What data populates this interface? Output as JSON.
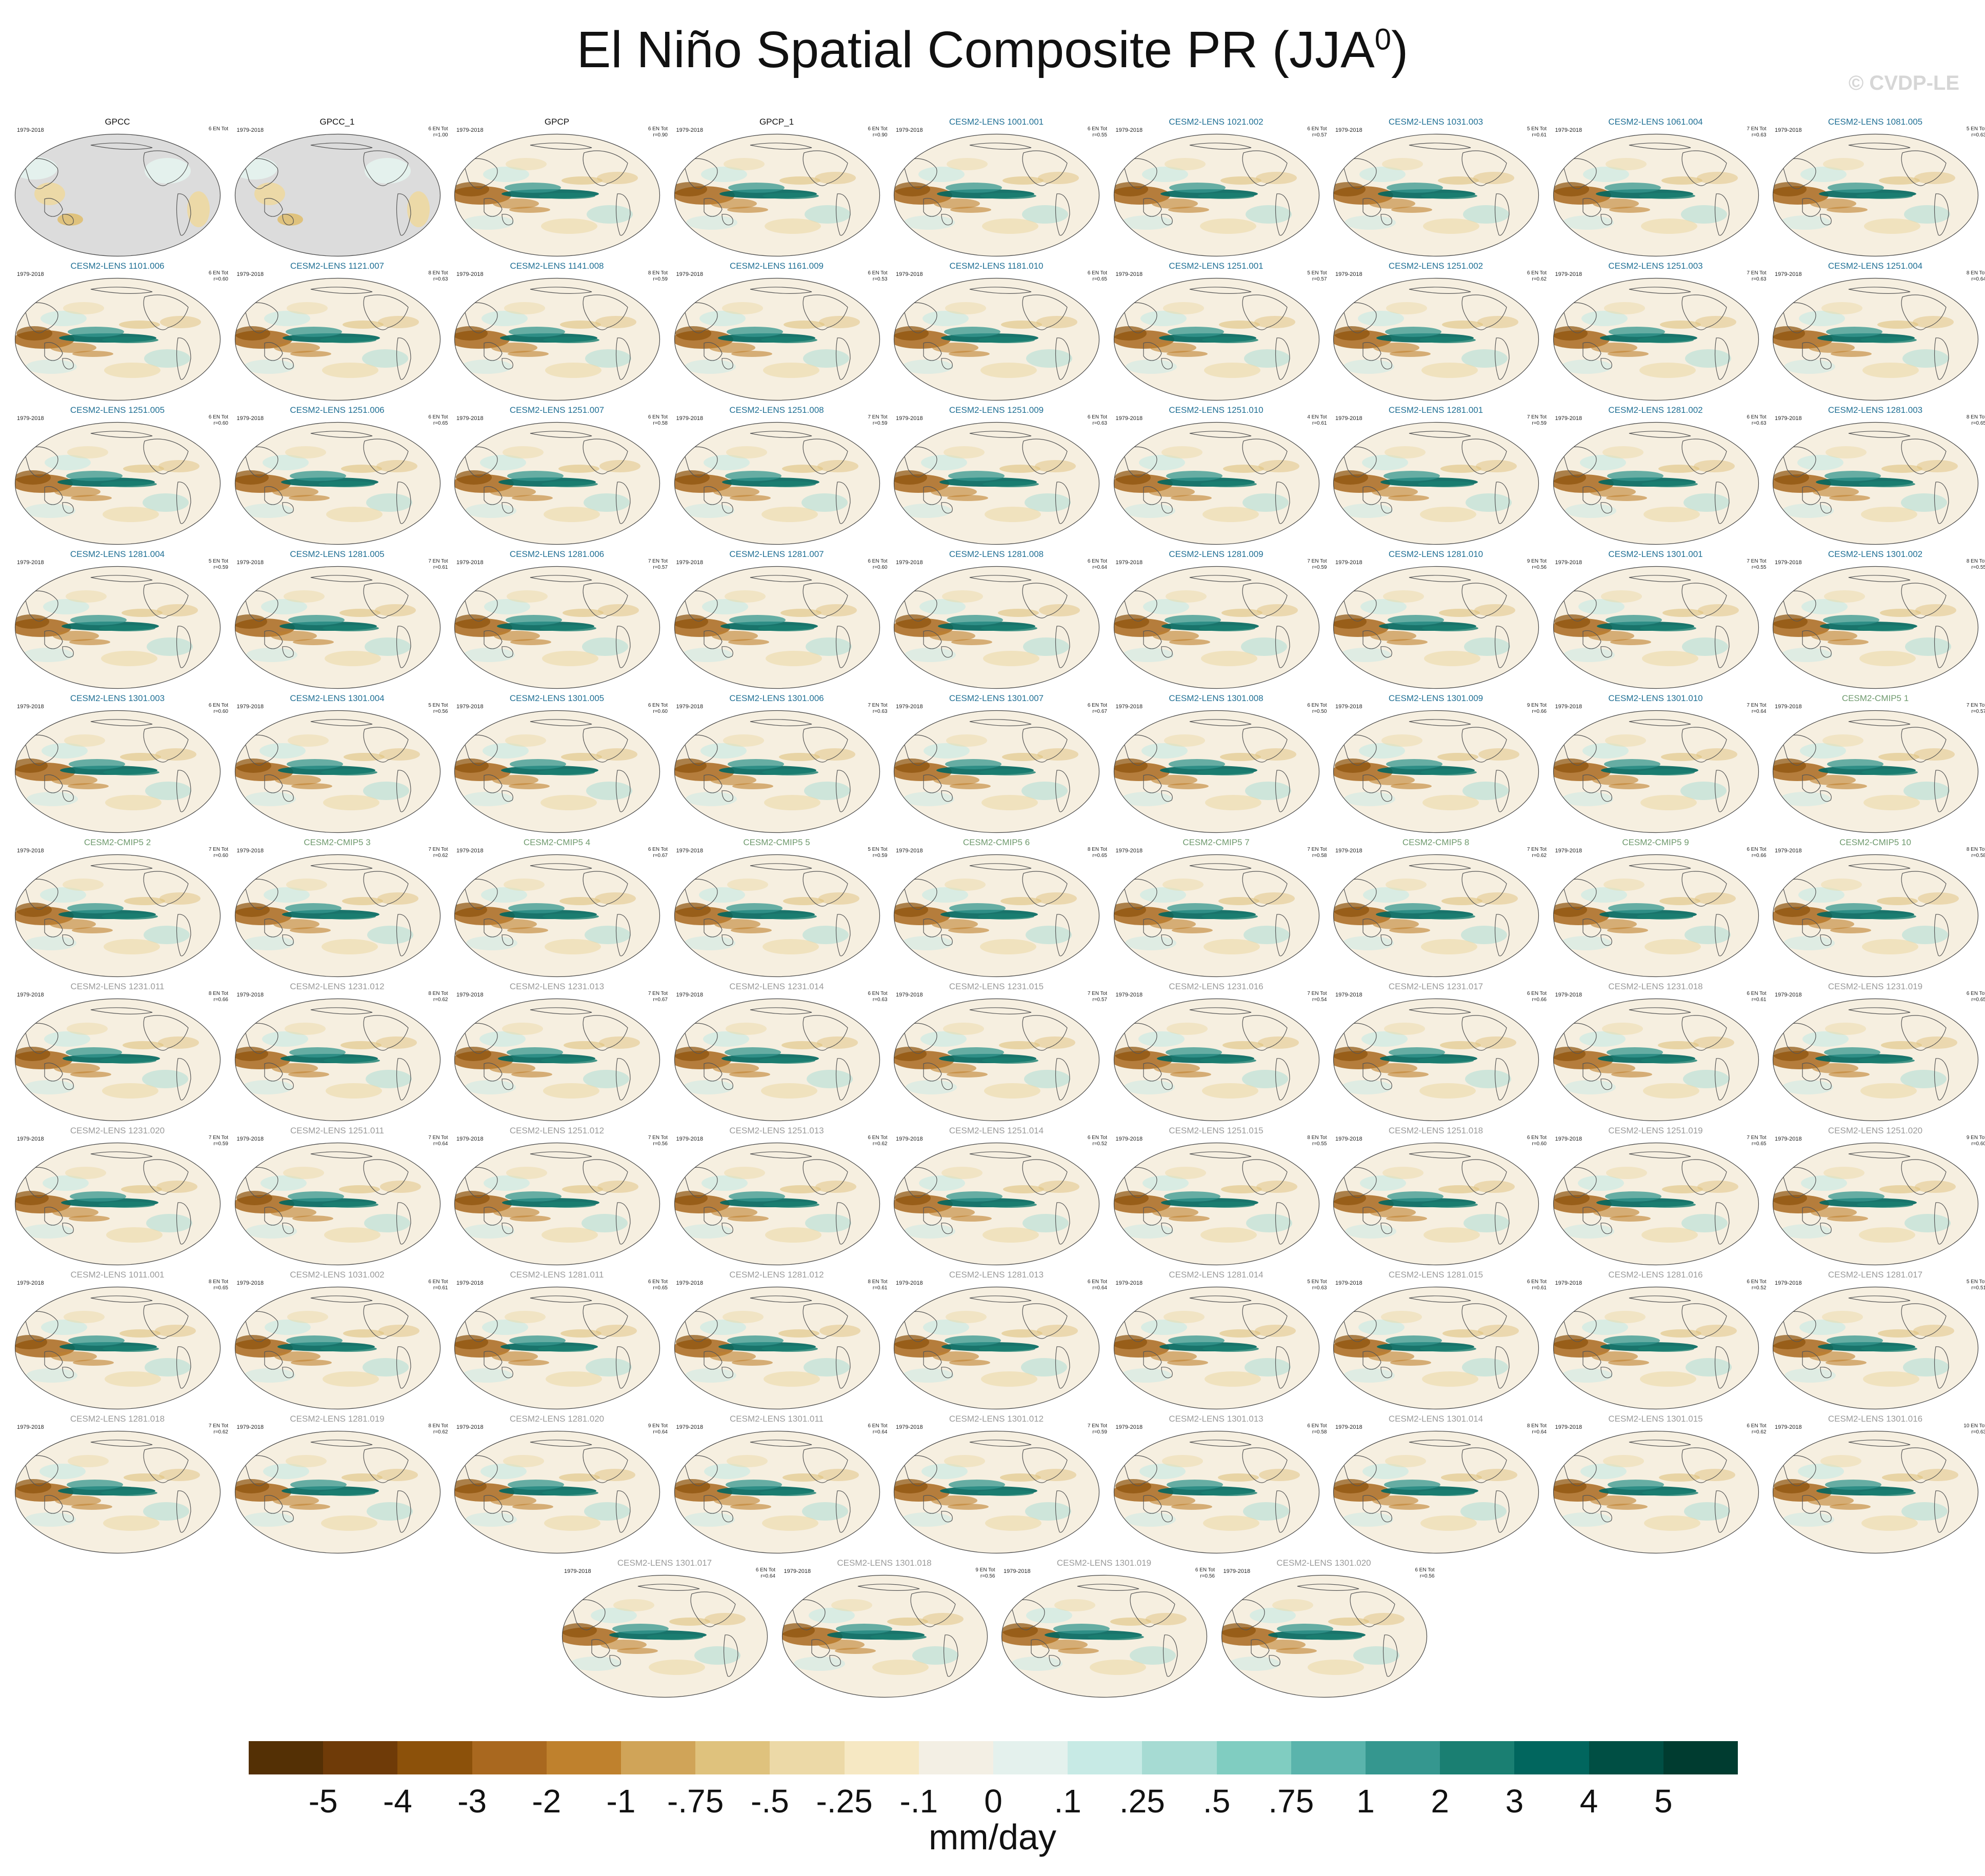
{
  "title": {
    "text": "El Niño Spatial Composite PR (JJA",
    "superscript": "0",
    "close": ")"
  },
  "watermark": "© CVDP-LE",
  "units": "mm/day",
  "colorbar": {
    "colors": [
      "#543005",
      "#6f3b08",
      "#8c510a",
      "#a9681f",
      "#bf812d",
      "#d0a458",
      "#dfc27d",
      "#ecd9a7",
      "#f6e8c3",
      "#f3efe4",
      "#e4f1ed",
      "#c7eae5",
      "#a6dbd3",
      "#80cdc1",
      "#5ab4ac",
      "#35978f",
      "#1a7f72",
      "#01665e",
      "#004f44",
      "#003c30"
    ],
    "ticks": [
      "-5",
      "-4",
      "-3",
      "-2",
      "-1",
      "-.75",
      "-.5",
      "-.25",
      "-.1",
      "0",
      ".1",
      ".25",
      ".5",
      ".75",
      "1",
      "2",
      "3",
      "4",
      "5"
    ]
  },
  "panels": [
    {
      "name": "GPCC",
      "years": "1979-2018",
      "count": "6 EN Tot",
      "r": "",
      "color": "#111111",
      "obs": true
    },
    {
      "name": "GPCC_1",
      "years": "1979-2018",
      "count": "6 EN Tot",
      "r": "r=1.00",
      "color": "#111111",
      "obs": true
    },
    {
      "name": "GPCP",
      "years": "1979-2018",
      "count": "6 EN Tot",
      "r": "r=0.90",
      "color": "#111111"
    },
    {
      "name": "GPCP_1",
      "years": "1979-2018",
      "count": "6 EN Tot",
      "r": "r=0.90",
      "color": "#111111"
    },
    {
      "name": "CESM2-LENS 1001.001",
      "years": "1979-2018",
      "count": "6 EN Tot",
      "r": "r=0.55",
      "color": "#1f6f94"
    },
    {
      "name": "CESM2-LENS 1021.002",
      "years": "1979-2018",
      "count": "6 EN Tot",
      "r": "r=0.57",
      "color": "#1f6f94"
    },
    {
      "name": "CESM2-LENS 1031.003",
      "years": "1979-2018",
      "count": "5 EN Tot",
      "r": "r=0.61",
      "color": "#1f6f94"
    },
    {
      "name": "CESM2-LENS 1061.004",
      "years": "1979-2018",
      "count": "7 EN Tot",
      "r": "r=0.63",
      "color": "#1f6f94"
    },
    {
      "name": "CESM2-LENS 1081.005",
      "years": "1979-2018",
      "count": "5 EN Tot",
      "r": "r=0.63",
      "color": "#1f6f94"
    },
    {
      "name": "CESM2-LENS 1101.006",
      "years": "1979-2018",
      "count": "6 EN Tot",
      "r": "r=0.60",
      "color": "#1f6f94"
    },
    {
      "name": "CESM2-LENS 1121.007",
      "years": "1979-2018",
      "count": "8 EN Tot",
      "r": "r=0.63",
      "color": "#1f6f94"
    },
    {
      "name": "CESM2-LENS 1141.008",
      "years": "1979-2018",
      "count": "8 EN Tot",
      "r": "r=0.59",
      "color": "#1f6f94"
    },
    {
      "name": "CESM2-LENS 1161.009",
      "years": "1979-2018",
      "count": "6 EN Tot",
      "r": "r=0.53",
      "color": "#1f6f94"
    },
    {
      "name": "CESM2-LENS 1181.010",
      "years": "1979-2018",
      "count": "6 EN Tot",
      "r": "r=0.65",
      "color": "#1f6f94"
    },
    {
      "name": "CESM2-LENS 1251.001",
      "years": "1979-2018",
      "count": "5 EN Tot",
      "r": "r=0.57",
      "color": "#1f6f94"
    },
    {
      "name": "CESM2-LENS 1251.002",
      "years": "1979-2018",
      "count": "6 EN Tot",
      "r": "r=0.62",
      "color": "#1f6f94"
    },
    {
      "name": "CESM2-LENS 1251.003",
      "years": "1979-2018",
      "count": "7 EN Tot",
      "r": "r=0.63",
      "color": "#1f6f94"
    },
    {
      "name": "CESM2-LENS 1251.004",
      "years": "1979-2018",
      "count": "8 EN Tot",
      "r": "r=0.64",
      "color": "#1f6f94"
    },
    {
      "name": "CESM2-LENS 1251.005",
      "years": "1979-2018",
      "count": "6 EN Tot",
      "r": "r=0.60",
      "color": "#1f6f94"
    },
    {
      "name": "CESM2-LENS 1251.006",
      "years": "1979-2018",
      "count": "6 EN Tot",
      "r": "r=0.65",
      "color": "#1f6f94"
    },
    {
      "name": "CESM2-LENS 1251.007",
      "years": "1979-2018",
      "count": "6 EN Tot",
      "r": "r=0.58",
      "color": "#1f6f94"
    },
    {
      "name": "CESM2-LENS 1251.008",
      "years": "1979-2018",
      "count": "7 EN Tot",
      "r": "r=0.59",
      "color": "#1f6f94"
    },
    {
      "name": "CESM2-LENS 1251.009",
      "years": "1979-2018",
      "count": "6 EN Tot",
      "r": "r=0.63",
      "color": "#1f6f94"
    },
    {
      "name": "CESM2-LENS 1251.010",
      "years": "1979-2018",
      "count": "4 EN Tot",
      "r": "r=0.61",
      "color": "#1f6f94"
    },
    {
      "name": "CESM2-LENS 1281.001",
      "years": "1979-2018",
      "count": "7 EN Tot",
      "r": "r=0.59",
      "color": "#1f6f94"
    },
    {
      "name": "CESM2-LENS 1281.002",
      "years": "1979-2018",
      "count": "6 EN Tot",
      "r": "r=0.63",
      "color": "#1f6f94"
    },
    {
      "name": "CESM2-LENS 1281.003",
      "years": "1979-2018",
      "count": "8 EN Tot",
      "r": "r=0.65",
      "color": "#1f6f94"
    },
    {
      "name": "CESM2-LENS 1281.004",
      "years": "1979-2018",
      "count": "5 EN Tot",
      "r": "r=0.59",
      "color": "#1f6f94"
    },
    {
      "name": "CESM2-LENS 1281.005",
      "years": "1979-2018",
      "count": "7 EN Tot",
      "r": "r=0.61",
      "color": "#1f6f94"
    },
    {
      "name": "CESM2-LENS 1281.006",
      "years": "1979-2018",
      "count": "7 EN Tot",
      "r": "r=0.57",
      "color": "#1f6f94"
    },
    {
      "name": "CESM2-LENS 1281.007",
      "years": "1979-2018",
      "count": "6 EN Tot",
      "r": "r=0.60",
      "color": "#1f6f94"
    },
    {
      "name": "CESM2-LENS 1281.008",
      "years": "1979-2018",
      "count": "6 EN Tot",
      "r": "r=0.64",
      "color": "#1f6f94"
    },
    {
      "name": "CESM2-LENS 1281.009",
      "years": "1979-2018",
      "count": "7 EN Tot",
      "r": "r=0.59",
      "color": "#1f6f94"
    },
    {
      "name": "CESM2-LENS 1281.010",
      "years": "1979-2018",
      "count": "9 EN Tot",
      "r": "r=0.56",
      "color": "#1f6f94"
    },
    {
      "name": "CESM2-LENS 1301.001",
      "years": "1979-2018",
      "count": "7 EN Tot",
      "r": "r=0.55",
      "color": "#1f6f94"
    },
    {
      "name": "CESM2-LENS 1301.002",
      "years": "1979-2018",
      "count": "8 EN Tot",
      "r": "r=0.55",
      "color": "#1f6f94"
    },
    {
      "name": "CESM2-LENS 1301.003",
      "years": "1979-2018",
      "count": "6 EN Tot",
      "r": "r=0.60",
      "color": "#1f6f94"
    },
    {
      "name": "CESM2-LENS 1301.004",
      "years": "1979-2018",
      "count": "5 EN Tot",
      "r": "r=0.56",
      "color": "#1f6f94"
    },
    {
      "name": "CESM2-LENS 1301.005",
      "years": "1979-2018",
      "count": "6 EN Tot",
      "r": "r=0.60",
      "color": "#1f6f94"
    },
    {
      "name": "CESM2-LENS 1301.006",
      "years": "1979-2018",
      "count": "7 EN Tot",
      "r": "r=0.63",
      "color": "#1f6f94"
    },
    {
      "name": "CESM2-LENS 1301.007",
      "years": "1979-2018",
      "count": "6 EN Tot",
      "r": "r=0.67",
      "color": "#1f6f94"
    },
    {
      "name": "CESM2-LENS 1301.008",
      "years": "1979-2018",
      "count": "6 EN Tot",
      "r": "r=0.50",
      "color": "#1f6f94"
    },
    {
      "name": "CESM2-LENS 1301.009",
      "years": "1979-2018",
      "count": "9 EN Tot",
      "r": "r=0.66",
      "color": "#1f6f94"
    },
    {
      "name": "CESM2-LENS 1301.010",
      "years": "1979-2018",
      "count": "7 EN Tot",
      "r": "r=0.64",
      "color": "#1f6f94"
    },
    {
      "name": "CESM2-CMIP5 1",
      "years": "1979-2018",
      "count": "7 EN Tot",
      "r": "r=0.57",
      "color": "#6f9a6e"
    },
    {
      "name": "CESM2-CMIP5 2",
      "years": "1979-2018",
      "count": "7 EN Tot",
      "r": "r=0.60",
      "color": "#6f9a6e"
    },
    {
      "name": "CESM2-CMIP5 3",
      "years": "1979-2018",
      "count": "7 EN Tot",
      "r": "r=0.62",
      "color": "#6f9a6e"
    },
    {
      "name": "CESM2-CMIP5 4",
      "years": "1979-2018",
      "count": "6 EN Tot",
      "r": "r=0.67",
      "color": "#6f9a6e"
    },
    {
      "name": "CESM2-CMIP5 5",
      "years": "1979-2018",
      "count": "5 EN Tot",
      "r": "r=0.59",
      "color": "#6f9a6e"
    },
    {
      "name": "CESM2-CMIP5 6",
      "years": "1979-2018",
      "count": "8 EN Tot",
      "r": "r=0.65",
      "color": "#6f9a6e"
    },
    {
      "name": "CESM2-CMIP5 7",
      "years": "1979-2018",
      "count": "7 EN Tot",
      "r": "r=0.58",
      "color": "#6f9a6e"
    },
    {
      "name": "CESM2-CMIP5 8",
      "years": "1979-2018",
      "count": "7 EN Tot",
      "r": "r=0.62",
      "color": "#6f9a6e"
    },
    {
      "name": "CESM2-CMIP5 9",
      "years": "1979-2018",
      "count": "6 EN Tot",
      "r": "r=0.66",
      "color": "#6f9a6e"
    },
    {
      "name": "CESM2-CMIP5 10",
      "years": "1979-2018",
      "count": "8 EN Tot",
      "r": "r=0.58",
      "color": "#6f9a6e"
    },
    {
      "name": "CESM2-LENS 1231.011",
      "years": "1979-2018",
      "count": "8 EN Tot",
      "r": "r=0.66",
      "color": "#9a9a9a"
    },
    {
      "name": "CESM2-LENS 1231.012",
      "years": "1979-2018",
      "count": "8 EN Tot",
      "r": "r=0.62",
      "color": "#9a9a9a"
    },
    {
      "name": "CESM2-LENS 1231.013",
      "years": "1979-2018",
      "count": "7 EN Tot",
      "r": "r=0.67",
      "color": "#9a9a9a"
    },
    {
      "name": "CESM2-LENS 1231.014",
      "years": "1979-2018",
      "count": "6 EN Tot",
      "r": "r=0.63",
      "color": "#9a9a9a"
    },
    {
      "name": "CESM2-LENS 1231.015",
      "years": "1979-2018",
      "count": "7 EN Tot",
      "r": "r=0.57",
      "color": "#9a9a9a"
    },
    {
      "name": "CESM2-LENS 1231.016",
      "years": "1979-2018",
      "count": "7 EN Tot",
      "r": "r=0.54",
      "color": "#9a9a9a"
    },
    {
      "name": "CESM2-LENS 1231.017",
      "years": "1979-2018",
      "count": "6 EN Tot",
      "r": "r=0.66",
      "color": "#9a9a9a"
    },
    {
      "name": "CESM2-LENS 1231.018",
      "years": "1979-2018",
      "count": "6 EN Tot",
      "r": "r=0.61",
      "color": "#9a9a9a"
    },
    {
      "name": "CESM2-LENS 1231.019",
      "years": "1979-2018",
      "count": "6 EN Tot",
      "r": "r=0.65",
      "color": "#9a9a9a"
    },
    {
      "name": "CESM2-LENS 1231.020",
      "years": "1979-2018",
      "count": "7 EN Tot",
      "r": "r=0.59",
      "color": "#9a9a9a"
    },
    {
      "name": "CESM2-LENS 1251.011",
      "years": "1979-2018",
      "count": "7 EN Tot",
      "r": "r=0.64",
      "color": "#9a9a9a"
    },
    {
      "name": "CESM2-LENS 1251.012",
      "years": "1979-2018",
      "count": "7 EN Tot",
      "r": "r=0.56",
      "color": "#9a9a9a"
    },
    {
      "name": "CESM2-LENS 1251.013",
      "years": "1979-2018",
      "count": "6 EN Tot",
      "r": "r=0.62",
      "color": "#9a9a9a"
    },
    {
      "name": "CESM2-LENS 1251.014",
      "years": "1979-2018",
      "count": "6 EN Tot",
      "r": "r=0.52",
      "color": "#9a9a9a"
    },
    {
      "name": "CESM2-LENS 1251.015",
      "years": "1979-2018",
      "count": "8 EN Tot",
      "r": "r=0.55",
      "color": "#9a9a9a"
    },
    {
      "name": "CESM2-LENS 1251.018",
      "years": "1979-2018",
      "count": "6 EN Tot",
      "r": "r=0.60",
      "color": "#9a9a9a"
    },
    {
      "name": "CESM2-LENS 1251.019",
      "years": "1979-2018",
      "count": "7 EN Tot",
      "r": "r=0.65",
      "color": "#9a9a9a"
    },
    {
      "name": "CESM2-LENS 1251.020",
      "years": "1979-2018",
      "count": "9 EN Tot",
      "r": "r=0.60",
      "color": "#9a9a9a"
    },
    {
      "name": "CESM2-LENS 1011.001",
      "years": "1979-2018",
      "count": "8 EN Tot",
      "r": "r=0.65",
      "color": "#9a9a9a"
    },
    {
      "name": "CESM2-LENS 1031.002",
      "years": "1979-2018",
      "count": "6 EN Tot",
      "r": "r=0.61",
      "color": "#9a9a9a"
    },
    {
      "name": "CESM2-LENS 1281.011",
      "years": "1979-2018",
      "count": "6 EN Tot",
      "r": "r=0.65",
      "color": "#9a9a9a"
    },
    {
      "name": "CESM2-LENS 1281.012",
      "years": "1979-2018",
      "count": "8 EN Tot",
      "r": "r=0.61",
      "color": "#9a9a9a"
    },
    {
      "name": "CESM2-LENS 1281.013",
      "years": "1979-2018",
      "count": "6 EN Tot",
      "r": "r=0.64",
      "color": "#9a9a9a"
    },
    {
      "name": "CESM2-LENS 1281.014",
      "years": "1979-2018",
      "count": "5 EN Tot",
      "r": "r=0.63",
      "color": "#9a9a9a"
    },
    {
      "name": "CESM2-LENS 1281.015",
      "years": "1979-2018",
      "count": "6 EN Tot",
      "r": "r=0.61",
      "color": "#9a9a9a"
    },
    {
      "name": "CESM2-LENS 1281.016",
      "years": "1979-2018",
      "count": "6 EN Tot",
      "r": "r=0.52",
      "color": "#9a9a9a"
    },
    {
      "name": "CESM2-LENS 1281.017",
      "years": "1979-2018",
      "count": "5 EN Tot",
      "r": "r=0.51",
      "color": "#9a9a9a"
    },
    {
      "name": "CESM2-LENS 1281.018",
      "years": "1979-2018",
      "count": "7 EN Tot",
      "r": "r=0.62",
      "color": "#9a9a9a"
    },
    {
      "name": "CESM2-LENS 1281.019",
      "years": "1979-2018",
      "count": "8 EN Tot",
      "r": "r=0.62",
      "color": "#9a9a9a"
    },
    {
      "name": "CESM2-LENS 1281.020",
      "years": "1979-2018",
      "count": "9 EN Tot",
      "r": "r=0.64",
      "color": "#9a9a9a"
    },
    {
      "name": "CESM2-LENS 1301.011",
      "years": "1979-2018",
      "count": "6 EN Tot",
      "r": "r=0.64",
      "color": "#9a9a9a"
    },
    {
      "name": "CESM2-LENS 1301.012",
      "years": "1979-2018",
      "count": "7 EN Tot",
      "r": "r=0.59",
      "color": "#9a9a9a"
    },
    {
      "name": "CESM2-LENS 1301.013",
      "years": "1979-2018",
      "count": "6 EN Tot",
      "r": "r=0.58",
      "color": "#9a9a9a"
    },
    {
      "name": "CESM2-LENS 1301.014",
      "years": "1979-2018",
      "count": "8 EN Tot",
      "r": "r=0.64",
      "color": "#9a9a9a"
    },
    {
      "name": "CESM2-LENS 1301.015",
      "years": "1979-2018",
      "count": "6 EN Tot",
      "r": "r=0.62",
      "color": "#9a9a9a"
    },
    {
      "name": "CESM2-LENS 1301.016",
      "years": "1979-2018",
      "count": "10 EN Tot",
      "r": "r=0.63",
      "color": "#9a9a9a"
    },
    {
      "name": "CESM2-LENS 1301.017",
      "years": "1979-2018",
      "count": "6 EN Tot",
      "r": "r=0.64",
      "color": "#9a9a9a"
    },
    {
      "name": "CESM2-LENS 1301.018",
      "years": "1979-2018",
      "count": "9 EN Tot",
      "r": "r=0.56",
      "color": "#9a9a9a"
    },
    {
      "name": "CESM2-LENS 1301.019",
      "years": "1979-2018",
      "count": "6 EN Tot",
      "r": "r=0.56",
      "color": "#9a9a9a"
    },
    {
      "name": "CESM2-LENS 1301.020",
      "years": "1979-2018",
      "count": "6 EN Tot",
      "r": "r=0.56",
      "color": "#9a9a9a"
    }
  ]
}
